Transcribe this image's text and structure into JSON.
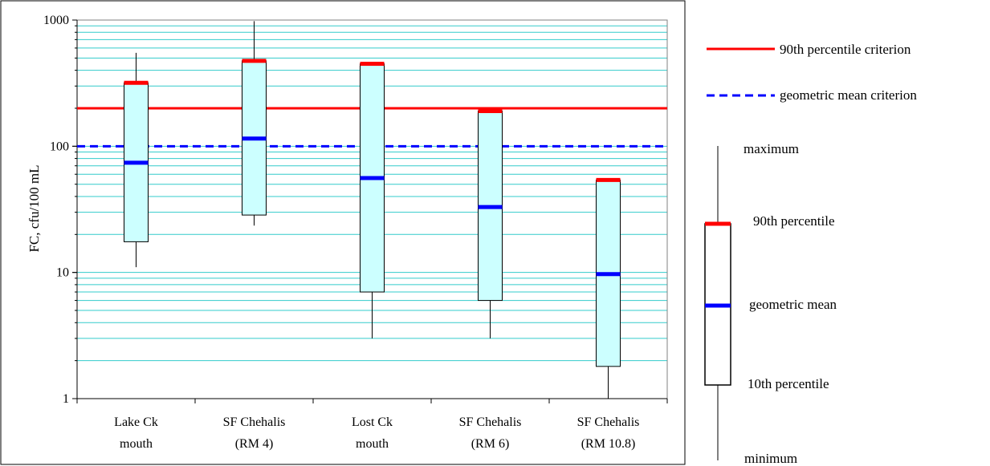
{
  "chart_data": {
    "type": "box",
    "yscale": "log",
    "ylim": [
      1,
      1000
    ],
    "ylabel": "FC, cfu/100 mL",
    "ytick_labels": [
      "1",
      "10",
      "100",
      "1000"
    ],
    "yticks": [
      1,
      10,
      100,
      1000
    ],
    "grid": "minor-horizontal",
    "categories": [
      {
        "line1": "Lake Ck",
        "line2": "mouth"
      },
      {
        "line1": "SF Chehalis",
        "line2": "(RM 4)"
      },
      {
        "line1": "Lost Ck",
        "line2": "mouth"
      },
      {
        "line1": "SF Chehalis",
        "line2": "(RM 6)"
      },
      {
        "line1": "SF Chehalis",
        "line2": "(RM 10.8)"
      }
    ],
    "boxes": [
      {
        "min": 11,
        "p10": 17.5,
        "geomean": 74,
        "p90": 318,
        "max": 550
      },
      {
        "min": 23.5,
        "p10": 28.5,
        "geomean": 115,
        "p90": 475,
        "max": 980
      },
      {
        "min": 3,
        "p10": 7,
        "geomean": 56,
        "p90": 450,
        "max": 450
      },
      {
        "min": 3,
        "p10": 6,
        "geomean": 33,
        "p90": 190,
        "max": 190
      },
      {
        "min": 1,
        "p10": 1.8,
        "geomean": 9.7,
        "p90": 54,
        "max": 54
      }
    ],
    "reference_lines": [
      {
        "name": "90th percentile criterion",
        "value": 200,
        "color": "#ff0000",
        "style": "solid"
      },
      {
        "name": "geometric mean criterion",
        "value": 100,
        "color": "#0000ff",
        "style": "dashed"
      }
    ],
    "box_legend": {
      "maximum": "maximum",
      "p90": "90th percentile",
      "geomean": "geometric mean",
      "p10": "10th percentile",
      "minimum": "minimum"
    },
    "colors": {
      "box_fill": "#ccffff",
      "p90_marker": "#ff0000",
      "geomean_marker": "#0000ff",
      "grid": "#33cccc",
      "legend_box_fill": "#ffffff"
    }
  }
}
